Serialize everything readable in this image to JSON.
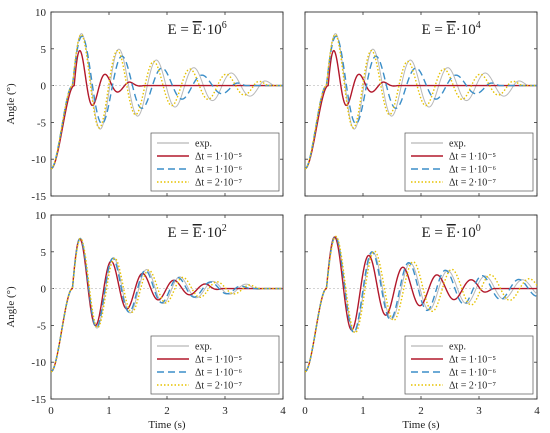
{
  "figure": {
    "xlabel": "Time (s)",
    "ylabel": "Angle (°)"
  },
  "chart_data": [
    {
      "type": "line",
      "title_prefix": "E = ",
      "title_bar": "E",
      "title_mult": "·10",
      "title_exp": "6",
      "xlim": [
        0,
        4
      ],
      "ylim": [
        -15,
        10
      ],
      "xticks": [
        "0",
        "1",
        "2",
        "3",
        "4"
      ],
      "yticks": [
        "10",
        "5",
        "0",
        "-5",
        "-10",
        "-15"
      ],
      "legend": "bottom-right",
      "series": [
        {
          "name": "exp.",
          "color": "#b8b8b8",
          "dash": "",
          "width": 1.0,
          "A": 7.7,
          "f": 1.55,
          "d": 0.55,
          "t0": 0.37,
          "tc": 3.6
        },
        {
          "name": "1·10⁻⁵",
          "color": "#b2182b",
          "dash": "",
          "width": 1.4,
          "A": 6.2,
          "f": 2.3,
          "d": 2.6,
          "t0": 0.4,
          "tc": 1.35
        },
        {
          "name": "1·10⁻⁶",
          "color": "#3b8ec8",
          "dash": "7,4",
          "width": 1.4,
          "A": 7.6,
          "f": 1.45,
          "d": 0.75,
          "t0": 0.37,
          "tc": 3.1
        },
        {
          "name": "2·10⁻⁷",
          "color": "#e6c200",
          "dash": "1.5,2",
          "width": 1.4,
          "A": 7.6,
          "f": 1.6,
          "d": 0.6,
          "t0": 0.37,
          "tc": 3.5
        }
      ]
    },
    {
      "type": "line",
      "title_prefix": "E = ",
      "title_bar": "E",
      "title_mult": "·10",
      "title_exp": "4",
      "xlim": [
        0,
        4
      ],
      "ylim": [
        -15,
        10
      ],
      "xticks": [
        "0",
        "1",
        "2",
        "3",
        "4"
      ],
      "yticks": [
        "10",
        "5",
        "0",
        "-5",
        "-10",
        "-15"
      ],
      "legend": "bottom-right",
      "series": [
        {
          "name": "exp.",
          "color": "#b8b8b8",
          "dash": "",
          "width": 1.0,
          "A": 7.7,
          "f": 1.55,
          "d": 0.55,
          "t0": 0.37,
          "tc": 3.6
        },
        {
          "name": "1·10⁻⁵",
          "color": "#b2182b",
          "dash": "",
          "width": 1.4,
          "A": 6.2,
          "f": 2.3,
          "d": 2.6,
          "t0": 0.4,
          "tc": 1.35
        },
        {
          "name": "1·10⁻⁶",
          "color": "#3b8ec8",
          "dash": "7,4",
          "width": 1.4,
          "A": 7.6,
          "f": 1.45,
          "d": 0.75,
          "t0": 0.37,
          "tc": 3.1
        },
        {
          "name": "2·10⁻⁷",
          "color": "#e6c200",
          "dash": "1.5,2",
          "width": 1.4,
          "A": 7.6,
          "f": 1.6,
          "d": 0.6,
          "t0": 0.37,
          "tc": 3.5
        }
      ]
    },
    {
      "type": "line",
      "title_prefix": "E = ",
      "title_bar": "E",
      "title_mult": "·10",
      "title_exp": "2",
      "xlim": [
        0,
        4
      ],
      "ylim": [
        -15,
        10
      ],
      "xticks": [
        "0",
        "1",
        "2",
        "3",
        "4"
      ],
      "yticks": [
        "10",
        "5",
        "0",
        "-5",
        "-10",
        "-15"
      ],
      "legend": "bottom-right",
      "series": [
        {
          "name": "exp.",
          "color": "#b8b8b8",
          "dash": "",
          "width": 1.0,
          "A": 7.7,
          "f": 1.75,
          "d": 0.85,
          "t0": 0.37,
          "tc": 3.4
        },
        {
          "name": "1·10⁻⁵",
          "color": "#b2182b",
          "dash": "",
          "width": 1.4,
          "A": 7.8,
          "f": 1.85,
          "d": 1.1,
          "t0": 0.37,
          "tc": 2.7
        },
        {
          "name": "1·10⁻⁶",
          "color": "#3b8ec8",
          "dash": "7,4",
          "width": 1.4,
          "A": 7.7,
          "f": 1.78,
          "d": 0.9,
          "t0": 0.37,
          "tc": 3.2
        },
        {
          "name": "2·10⁻⁷",
          "color": "#e6c200",
          "dash": "1.5,2",
          "width": 1.4,
          "A": 7.7,
          "f": 1.7,
          "d": 0.85,
          "t0": 0.37,
          "tc": 3.4
        }
      ]
    },
    {
      "type": "line",
      "title_prefix": "E = ",
      "title_bar": "E",
      "title_mult": "·10",
      "title_exp": "0",
      "xlim": [
        0,
        4
      ],
      "ylim": [
        -15,
        10
      ],
      "xticks": [
        "0",
        "1",
        "2",
        "3",
        "4"
      ],
      "yticks": [
        "10",
        "5",
        "0",
        "-5",
        "-10",
        "-15"
      ],
      "legend": "bottom-right",
      "series": [
        {
          "name": "exp.",
          "color": "#b8b8b8",
          "dash": "",
          "width": 1.0,
          "A": 7.7,
          "f": 1.55,
          "d": 0.55,
          "t0": 0.37,
          "tc": 4.0
        },
        {
          "name": "1·10⁻⁵",
          "color": "#b2182b",
          "dash": "",
          "width": 1.4,
          "A": 7.8,
          "f": 1.7,
          "d": 0.75,
          "t0": 0.37,
          "tc": 3.0
        },
        {
          "name": "1·10⁻⁶",
          "color": "#3b8ec8",
          "dash": "7,4",
          "width": 1.4,
          "A": 7.7,
          "f": 1.58,
          "d": 0.55,
          "t0": 0.37,
          "tc": 4.0
        },
        {
          "name": "2·10⁻⁷",
          "color": "#e6c200",
          "dash": "1.5,2",
          "width": 1.4,
          "A": 7.7,
          "f": 1.5,
          "d": 0.5,
          "t0": 0.37,
          "tc": 4.0
        }
      ]
    }
  ]
}
